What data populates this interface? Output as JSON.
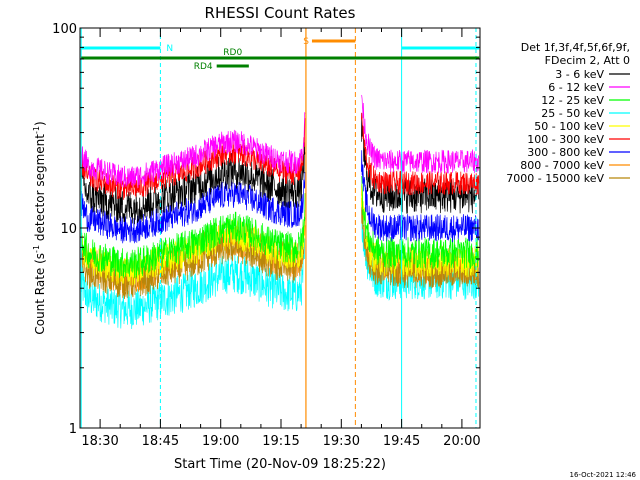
{
  "chart_data": {
    "type": "line",
    "title": "RHESSI Count Rates",
    "xlabel": "Start Time (20-Nov-09 18:25:22)",
    "ylabel_main": "Count Rate (s",
    "ylabel_sup1": "-1",
    "ylabel_mid": " detector segment",
    "ylabel_sup2": "-1",
    "ylabel_end": ")",
    "y_scale": "log",
    "ylim": [
      1,
      100
    ],
    "y_ticks": [
      {
        "value": 1,
        "label": "1"
      },
      {
        "value": 10,
        "label": "10"
      },
      {
        "value": 100,
        "label": "100"
      }
    ],
    "xlim_minutes_after_1825": [
      0,
      99.5
    ],
    "x_ticks": [
      {
        "minute": 5,
        "label": "18:30"
      },
      {
        "minute": 20,
        "label": "18:45"
      },
      {
        "minute": 35,
        "label": "19:00"
      },
      {
        "minute": 50,
        "label": "19:15"
      },
      {
        "minute": 65,
        "label": "19:30"
      },
      {
        "minute": 80,
        "label": "19:45"
      },
      {
        "minute": 95,
        "label": "20:00"
      }
    ],
    "legend_header": [
      "Det 1f,3f,4f,5f,6f,9f,",
      "FDecim 2, Att 0"
    ],
    "series": [
      {
        "name": "3 - 6 keV",
        "color": "#000000",
        "base": 15,
        "amp": 0.09,
        "pre": 17.5,
        "post": 14.5
      },
      {
        "name": "6 - 12 keV",
        "color": "#ff00ff",
        "base": 21,
        "amp": 0.06,
        "pre": 25,
        "post": 21.5
      },
      {
        "name": "12 - 25 keV",
        "color": "#00ff00",
        "base": 7.8,
        "amp": 0.08,
        "pre": 8.5,
        "post": 7.5
      },
      {
        "name": "25 - 50 keV",
        "color": "#00ffff",
        "base": 4.6,
        "amp": 0.1,
        "pre": 7,
        "post": 5.5
      },
      {
        "name": "50 - 100 keV",
        "color": "#ffff00",
        "base": 7.2,
        "amp": 0.08,
        "pre": 7.5,
        "post": 6.8
      },
      {
        "name": "100 - 300 keV",
        "color": "#ff0000",
        "base": 18.5,
        "amp": 0.06,
        "pre": 20,
        "post": 16.8
      },
      {
        "name": "300 - 800 keV",
        "color": "#0000ff",
        "base": 11.5,
        "amp": 0.07,
        "pre": 12.5,
        "post": 10
      },
      {
        "name": "800 - 7000 keV",
        "color": "#ff8c00",
        "base": 6.8,
        "amp": 0.09,
        "pre": 7.5,
        "post": 6.5
      },
      {
        "name": "7000 - 15000 keV",
        "color": "#b8860b",
        "base": 6.2,
        "amp": 0.08,
        "pre": 6.8,
        "post": 6.0
      }
    ],
    "gap_minutes": [
      56,
      70
    ],
    "annotations": {
      "night_label": "N",
      "saa_label": "S",
      "rd0_label": "RD0",
      "rd4_label": "RD4"
    },
    "colors": {
      "night": "#00ffff",
      "saa": "#ff8c00",
      "decim": "#008000"
    }
  },
  "timestamp": "16-Oct-2021 12:46"
}
